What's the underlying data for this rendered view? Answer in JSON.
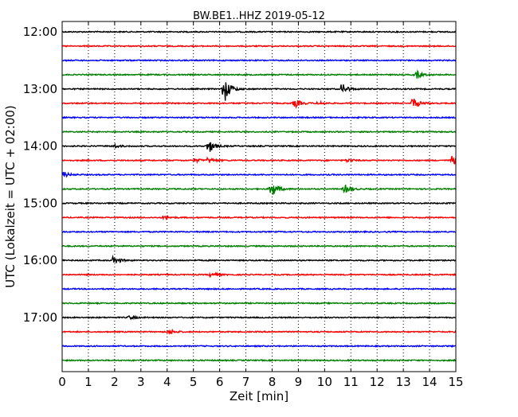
{
  "chart_data": {
    "type": "line",
    "title": "BW.BE1..HHZ 2019-05-12",
    "xlabel": "Zeit  [min]",
    "ylabel": "UTC (Lokalzeit = UTC + 02:00)",
    "xlim": [
      0,
      15
    ],
    "x_ticks": [
      "0",
      "1",
      "2",
      "3",
      "4",
      "5",
      "6",
      "7",
      "8",
      "9",
      "10",
      "11",
      "12",
      "13",
      "14",
      "15"
    ],
    "y_tick_labels": [
      {
        "row": 0,
        "label": "12:00"
      },
      {
        "row": 4,
        "label": "13:00"
      },
      {
        "row": 8,
        "label": "14:00"
      },
      {
        "row": 12,
        "label": "15:00"
      },
      {
        "row": 16,
        "label": "16:00"
      },
      {
        "row": 20,
        "label": "17:00"
      }
    ],
    "grid": "vertical dotted",
    "row_colors": [
      "#000000",
      "#ff0000",
      "#0000ff",
      "#008000"
    ],
    "rows": [
      {
        "time": "12:00",
        "events": []
      },
      {
        "time": "12:15",
        "events": []
      },
      {
        "time": "12:30",
        "events": []
      },
      {
        "time": "12:45",
        "events": [
          {
            "t": 13.5,
            "amp": 5
          }
        ]
      },
      {
        "time": "13:00",
        "events": [
          {
            "t": 6.2,
            "amp": 16
          },
          {
            "t": 10.7,
            "amp": 6
          }
        ]
      },
      {
        "time": "13:15",
        "events": [
          {
            "t": 8.9,
            "amp": 5
          },
          {
            "t": 9.8,
            "amp": 2
          },
          {
            "t": 13.4,
            "amp": 7
          }
        ]
      },
      {
        "time": "13:30",
        "events": []
      },
      {
        "time": "13:45",
        "events": []
      },
      {
        "time": "14:00",
        "events": [
          {
            "t": 2.0,
            "amp": 2
          },
          {
            "t": 5.6,
            "amp": 8
          }
        ]
      },
      {
        "time": "14:15",
        "events": [
          {
            "t": 5.1,
            "amp": 2
          },
          {
            "t": 5.6,
            "amp": 3
          },
          {
            "t": 10.9,
            "amp": 2
          },
          {
            "t": 14.9,
            "amp": 5
          }
        ]
      },
      {
        "time": "14:30",
        "events": [
          {
            "t": 0.1,
            "amp": 3
          }
        ]
      },
      {
        "time": "14:45",
        "events": [
          {
            "t": 8.0,
            "amp": 10
          },
          {
            "t": 10.8,
            "amp": 5
          }
        ]
      },
      {
        "time": "15:00",
        "events": []
      },
      {
        "time": "15:15",
        "events": [
          {
            "t": 3.9,
            "amp": 2
          }
        ]
      },
      {
        "time": "15:30",
        "events": []
      },
      {
        "time": "15:45",
        "events": []
      },
      {
        "time": "16:00",
        "events": [
          {
            "t": 2.0,
            "amp": 5
          }
        ]
      },
      {
        "time": "16:15",
        "events": [
          {
            "t": 5.7,
            "amp": 3
          }
        ]
      },
      {
        "time": "16:30",
        "events": []
      },
      {
        "time": "16:45",
        "events": []
      },
      {
        "time": "17:00",
        "events": [
          {
            "t": 2.6,
            "amp": 2
          }
        ]
      },
      {
        "time": "17:15",
        "events": [
          {
            "t": 4.1,
            "amp": 3
          }
        ]
      },
      {
        "time": "17:30",
        "events": []
      },
      {
        "time": "17:45",
        "events": []
      }
    ]
  }
}
